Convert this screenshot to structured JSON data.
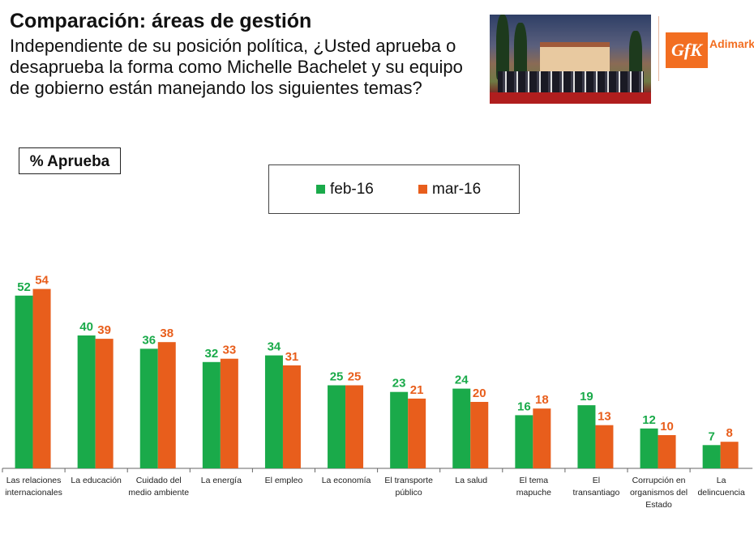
{
  "header": {
    "title": "Comparación: áreas de gestión",
    "question": "Independiente de su posición política, ¿Usted aprueba o desaprueba la forma como Michelle Bachelet y su equipo de gobierno están manejando los siguientes temas?"
  },
  "logo": {
    "brand": "GfK",
    "partner": "Adimark"
  },
  "colors": {
    "feb": "#1aaa4a",
    "mar": "#e85e1c",
    "axis": "#666666"
  },
  "chart_data": {
    "type": "bar",
    "ylabel": "% Aprueba",
    "ylim": [
      0,
      60
    ],
    "grid": false,
    "legend": "top-center",
    "categories": [
      "Las relaciones internacionales",
      "La educación",
      "Cuidado del medio ambiente",
      "La energía",
      "El empleo",
      "La economía",
      "El transporte público",
      "La salud",
      "El tema mapuche",
      "El transantiago",
      "Corrupción en organismos del Estado",
      "La delincuencia"
    ],
    "series": [
      {
        "name": "feb-16",
        "values": [
          52,
          40,
          36,
          32,
          34,
          25,
          23,
          24,
          16,
          19,
          12,
          7
        ]
      },
      {
        "name": "mar-16",
        "values": [
          54,
          39,
          38,
          33,
          31,
          25,
          21,
          20,
          18,
          13,
          10,
          8
        ]
      }
    ]
  }
}
